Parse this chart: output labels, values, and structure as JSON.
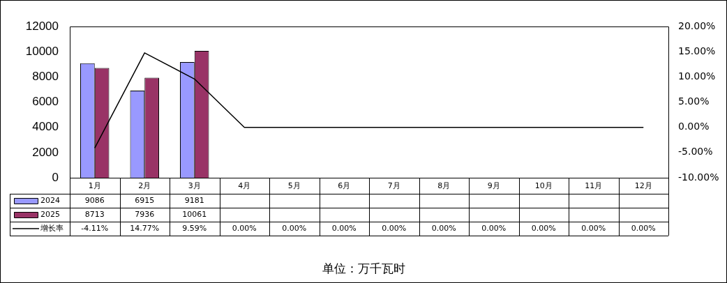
{
  "chart_data": {
    "type": "bar",
    "categories": [
      "1月",
      "2月",
      "3月",
      "4月",
      "5月",
      "6月",
      "7月",
      "8月",
      "9月",
      "10月",
      "11月",
      "12月"
    ],
    "series": [
      {
        "name": "2024",
        "color": "#9999ff",
        "values": [
          9086,
          6915,
          9181,
          null,
          null,
          null,
          null,
          null,
          null,
          null,
          null,
          null
        ],
        "value_labels": [
          "9086",
          "6915",
          "9181",
          null,
          null,
          null,
          null,
          null,
          null,
          null,
          null,
          null
        ]
      },
      {
        "name": "2025",
        "color": "#993366",
        "values": [
          8713,
          7936,
          10061,
          null,
          null,
          null,
          null,
          null,
          null,
          null,
          null,
          null
        ],
        "value_labels": [
          "8713",
          "7936",
          "10061",
          null,
          null,
          null,
          null,
          null,
          null,
          null,
          null,
          null
        ]
      },
      {
        "name": "增长率",
        "type": "line",
        "axis": "y2",
        "color": "#000000",
        "marker": "none",
        "values": [
          -4.11,
          14.77,
          9.59,
          0,
          0,
          0,
          0,
          0,
          0,
          0,
          0,
          0
        ],
        "value_labels": [
          "-4.11%",
          "14.77%",
          "9.59%",
          "0.00%",
          "0.00%",
          "0.00%",
          "0.00%",
          "0.00%",
          "0.00%",
          "0.00%",
          "0.00%",
          "0.00%"
        ]
      }
    ],
    "ylim": [
      0,
      12000
    ],
    "yticks": [
      0,
      2000,
      4000,
      6000,
      8000,
      10000,
      12000
    ],
    "y2lim": [
      -10,
      20
    ],
    "y2ticks": [
      {
        "value": -10,
        "label": "-10.00%"
      },
      {
        "value": -5,
        "label": "-5.00%"
      },
      {
        "value": 0,
        "label": "0.00%"
      },
      {
        "value": 5,
        "label": "5.00%"
      },
      {
        "value": 10,
        "label": "10.00%"
      },
      {
        "value": 15,
        "label": "15.00%"
      },
      {
        "value": 20,
        "label": "20.00%"
      }
    ],
    "legend": "bottom",
    "annotations": [
      "单位：万千瓦时"
    ]
  }
}
